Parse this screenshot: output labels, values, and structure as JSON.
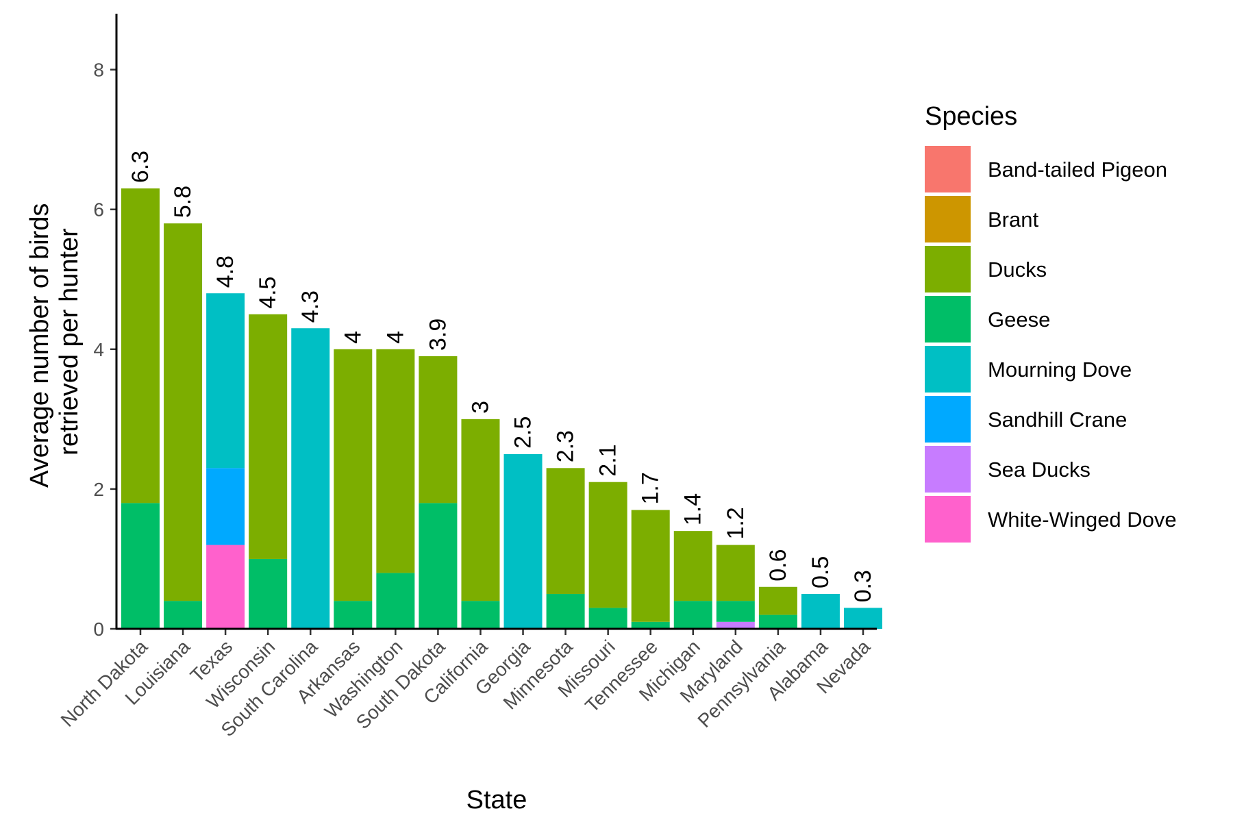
{
  "chart_data": {
    "type": "bar",
    "stacked": true,
    "title": "",
    "xlabel": "State",
    "ylabel": "Average number of birds retrieved per hunter",
    "ylabel_lines": [
      "Average number of birds",
      "retrieved per hunter"
    ],
    "ylim": [
      0,
      8.8
    ],
    "yticks": [
      0,
      2,
      4,
      6,
      8
    ],
    "grid": false,
    "legend_position": "right",
    "legend_title": "Species",
    "species": [
      {
        "name": "Band-tailed Pigeon",
        "color": "#F8766D"
      },
      {
        "name": "Brant",
        "color": "#CD9600"
      },
      {
        "name": "Ducks",
        "color": "#7CAE00"
      },
      {
        "name": "Geese",
        "color": "#00BE67"
      },
      {
        "name": "Mourning Dove",
        "color": "#00BFC4"
      },
      {
        "name": "Sandhill Crane",
        "color": "#00A9FF"
      },
      {
        "name": "Sea Ducks",
        "color": "#C77CFF"
      },
      {
        "name": "White-Winged Dove",
        "color": "#FF61CC"
      }
    ],
    "categories": [
      "North Dakota",
      "Louisiana",
      "Texas",
      "Wisconsin",
      "South Carolina",
      "Arkansas",
      "Washington",
      "South Dakota",
      "California",
      "Georgia",
      "Minnesota",
      "Missouri",
      "Tennessee",
      "Michigan",
      "Maryland",
      "Pennsylvania",
      "Alabama",
      "Nevada"
    ],
    "totals": [
      6.3,
      5.8,
      4.8,
      4.5,
      4.3,
      4.0,
      4.0,
      3.9,
      3.0,
      2.5,
      2.3,
      2.1,
      1.7,
      1.4,
      1.2,
      0.6,
      0.5,
      0.3
    ],
    "total_labels": [
      "6.3",
      "5.8",
      "4.8",
      "4.5",
      "4.3",
      "4",
      "4",
      "3.9",
      "3",
      "2.5",
      "2.3",
      "2.1",
      "1.7",
      "1.4",
      "1.2",
      "0.6",
      "0.5",
      "0.3"
    ],
    "series": [
      {
        "name": "Band-tailed Pigeon",
        "values": [
          0,
          0,
          0,
          0,
          0,
          0,
          0,
          0,
          0,
          0,
          0,
          0,
          0,
          0,
          0,
          0,
          0,
          0
        ]
      },
      {
        "name": "Brant",
        "values": [
          0,
          0,
          0,
          0,
          0,
          0,
          0,
          0,
          0,
          0,
          0,
          0,
          0,
          0,
          0,
          0,
          0,
          0
        ]
      },
      {
        "name": "Ducks",
        "values": [
          4.5,
          5.4,
          0,
          3.5,
          0,
          3.6,
          3.2,
          2.1,
          2.6,
          0,
          1.8,
          1.8,
          1.6,
          1.0,
          0.8,
          0.4,
          0,
          0
        ]
      },
      {
        "name": "Geese",
        "values": [
          1.8,
          0.4,
          0,
          1.0,
          0,
          0.4,
          0.8,
          1.8,
          0.4,
          0,
          0.5,
          0.3,
          0.1,
          0.4,
          0.3,
          0.2,
          0,
          0
        ]
      },
      {
        "name": "Mourning Dove",
        "values": [
          0,
          0,
          2.5,
          0,
          4.3,
          0,
          0,
          0,
          0,
          2.5,
          0,
          0,
          0,
          0,
          0,
          0,
          0.5,
          0.3
        ]
      },
      {
        "name": "Sandhill Crane",
        "values": [
          0,
          0,
          1.1,
          0,
          0,
          0,
          0,
          0,
          0,
          0,
          0,
          0,
          0,
          0,
          0,
          0,
          0,
          0
        ]
      },
      {
        "name": "Sea Ducks",
        "values": [
          0,
          0,
          0,
          0,
          0,
          0,
          0,
          0,
          0,
          0,
          0,
          0,
          0,
          0,
          0.1,
          0,
          0,
          0
        ]
      },
      {
        "name": "White-Winged Dove",
        "values": [
          0,
          0,
          1.2,
          0,
          0,
          0,
          0,
          0,
          0,
          0,
          0,
          0,
          0,
          0,
          0,
          0,
          0,
          0
        ]
      }
    ]
  }
}
